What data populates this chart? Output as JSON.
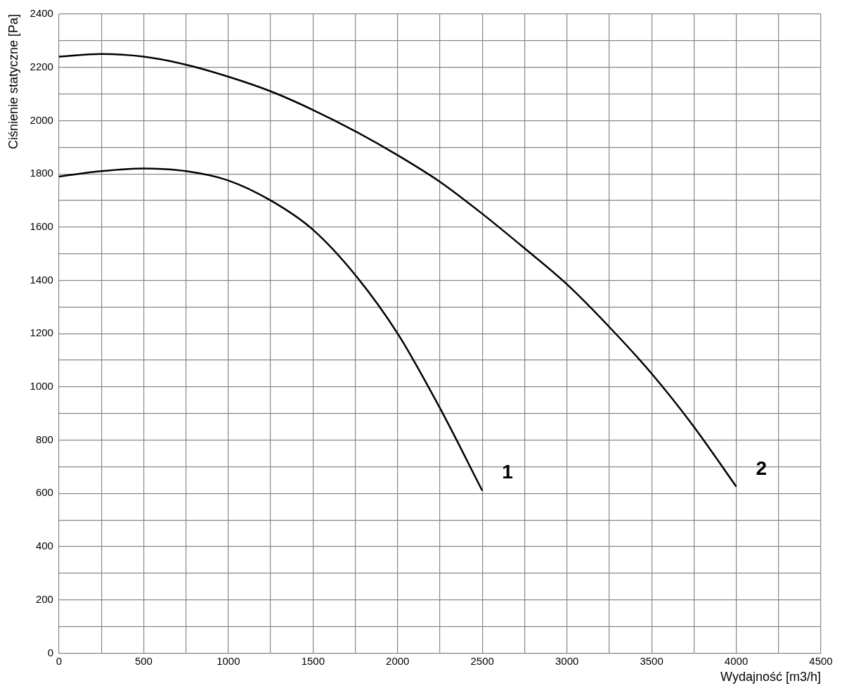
{
  "chart_data": {
    "type": "line",
    "xlabel": "Wydajność [m3/h]",
    "ylabel": "Ciśnienie statyczne [Pa]",
    "series": [
      {
        "name": "1",
        "color": "#000000",
        "x": [
          0,
          250,
          500,
          750,
          1000,
          1250,
          1500,
          1750,
          2000,
          2250,
          2500
        ],
        "values": [
          1790,
          1810,
          1820,
          1810,
          1775,
          1700,
          1590,
          1420,
          1200,
          920,
          610
        ]
      },
      {
        "name": "2",
        "color": "#000000",
        "x": [
          0,
          250,
          500,
          750,
          1000,
          1250,
          1500,
          1750,
          2000,
          2250,
          2500,
          2750,
          3000,
          3250,
          3500,
          3750,
          4000
        ],
        "values": [
          2240,
          2250,
          2240,
          2210,
          2165,
          2110,
          2040,
          1960,
          1870,
          1770,
          1650,
          1520,
          1385,
          1225,
          1050,
          850,
          625
        ]
      }
    ],
    "xlim": [
      0,
      4500
    ],
    "ylim": [
      0,
      2400
    ],
    "xticks": [
      0,
      {
        "value": 250,
        "label": null
      },
      500,
      {
        "value": 750,
        "label": null
      },
      1000,
      {
        "value": 1250,
        "label": null
      },
      1500,
      {
        "value": 1750,
        "label": null
      },
      2000,
      {
        "value": 2250,
        "label": null
      },
      2500,
      {
        "value": 2750,
        "label": null
      },
      3000,
      {
        "value": 3250,
        "label": null
      },
      3500,
      {
        "value": 3750,
        "label": null
      },
      4000,
      {
        "value": 4250,
        "label": null
      },
      4500
    ],
    "yticks": [
      0,
      {
        "value": 100,
        "label": null
      },
      200,
      {
        "value": 300,
        "label": null
      },
      400,
      {
        "value": 500,
        "label": null
      },
      600,
      {
        "value": 700,
        "label": null
      },
      800,
      {
        "value": 900,
        "label": null
      },
      1000,
      {
        "value": 1100,
        "label": null
      },
      1200,
      {
        "value": 1300,
        "label": null
      },
      1400,
      {
        "value": 1500,
        "label": null
      },
      1600,
      {
        "value": 1700,
        "label": null
      },
      1800,
      {
        "value": 1900,
        "label": null
      },
      2000,
      {
        "value": 2100,
        "label": null
      },
      2200,
      {
        "value": 2300,
        "label": null
      },
      2400
    ],
    "grid": true,
    "legend": false,
    "marker": "none",
    "line_style": "solid"
  }
}
